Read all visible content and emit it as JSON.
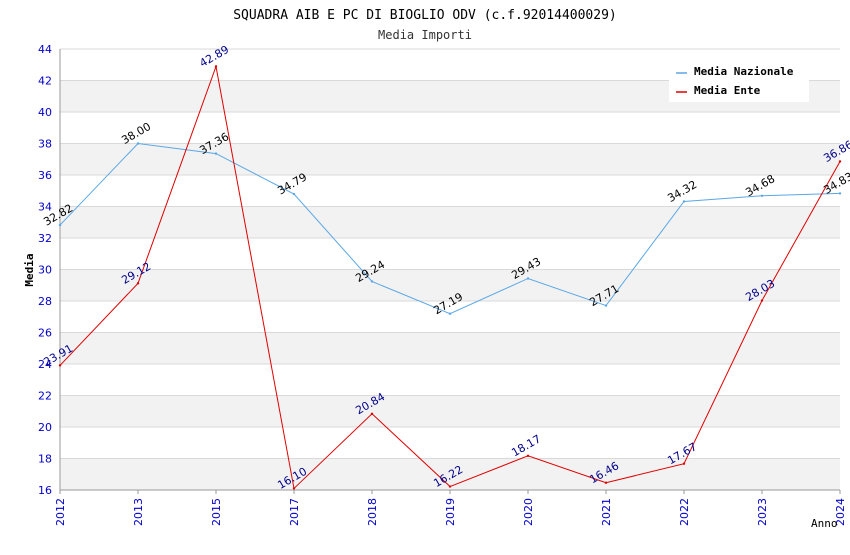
{
  "chart_data": {
    "type": "line",
    "title": "SQUADRA AIB E PC DI BIOGLIO ODV (c.f.92014400029)",
    "subtitle": "Media Importi",
    "xlabel": "Anno",
    "ylabel": "Media",
    "ylim": [
      16,
      44
    ],
    "yticks": [
      16,
      18,
      20,
      22,
      24,
      26,
      28,
      30,
      32,
      34,
      36,
      38,
      40,
      42,
      44
    ],
    "categories": [
      "2012",
      "2013",
      "2015",
      "2017",
      "2018",
      "2019",
      "2020",
      "2021",
      "2022",
      "2023",
      "2024"
    ],
    "grid": "horizontal bands",
    "legend_position": "top-right",
    "series": [
      {
        "name": "Media Nazionale",
        "color": "#5aa7e6",
        "label_color": "#000000",
        "values": [
          32.82,
          38.0,
          37.36,
          34.79,
          29.24,
          27.19,
          29.43,
          27.71,
          34.32,
          34.68,
          34.83
        ],
        "labels": [
          "32.82",
          "38.00",
          "37.36",
          "34.79",
          "29.24",
          "27.19",
          "29.43",
          "27.71",
          "34.32",
          "34.68",
          "34.83"
        ]
      },
      {
        "name": "Media Ente",
        "color": "#e00000",
        "label_color": "#00008b",
        "values": [
          23.91,
          29.12,
          42.89,
          16.1,
          20.84,
          16.22,
          18.17,
          16.46,
          17.67,
          28.03,
          36.86
        ],
        "labels": [
          "23.91",
          "29.12",
          "42.89",
          "16.10",
          "20.84",
          "16.22",
          "18.17",
          "16.46",
          "17.67",
          "28.03",
          "36.86"
        ]
      }
    ],
    "colors": {
      "axis_text": "#0000cc",
      "band_alt": "#f2f2f2",
      "grid": "#d9d9d9",
      "axis": "#999999"
    }
  }
}
